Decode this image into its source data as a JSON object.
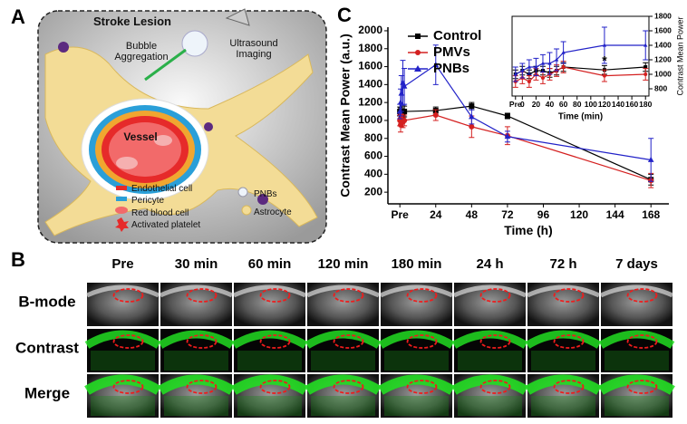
{
  "panel_labels": [
    "A",
    "B",
    "C"
  ],
  "illustration": {
    "title": "Stroke Lesion",
    "bubble": "Bubble Aggregation",
    "imaging": "Ultrasound Imaging",
    "vessel": "Vessel",
    "legend": [
      "Endothelial cell",
      "Pericyte",
      "Red blood cell",
      "Activated platelet"
    ],
    "legend_right": [
      "PNBs",
      "Astrocyte"
    ]
  },
  "image_grid": {
    "columns": [
      "Pre",
      "30 min",
      "60 min",
      "120 min",
      "180 min",
      "24 h",
      "72 h",
      "7 days"
    ],
    "rows": [
      "B-mode",
      "Contrast",
      "Merge"
    ]
  },
  "chart_data": [
    {
      "type": "line",
      "x_label": "Time (h)",
      "y_label": "Contrast Mean Power (a.u.)",
      "legend": "upper left",
      "x": [
        0,
        0.5,
        1,
        2,
        3,
        24,
        48,
        72,
        168
      ],
      "series": [
        {
          "name": "Control",
          "color": "#000000",
          "marker": "square",
          "values": [
            1100,
            1080,
            1090,
            1050,
            1100,
            1110,
            1160,
            1050,
            340
          ],
          "errors": [
            50,
            60,
            50,
            50,
            60,
            40,
            40,
            30,
            60
          ]
        },
        {
          "name": "PMVs",
          "color": "#d42020",
          "marker": "circle",
          "values": [
            1000,
            950,
            1000,
            980,
            1000,
            1060,
            930,
            830,
            330
          ],
          "errors": [
            60,
            80,
            70,
            60,
            60,
            60,
            120,
            100,
            80
          ]
        },
        {
          "name": "PNBs",
          "color": "#2222c8",
          "marker": "triangle",
          "values": [
            1100,
            1200,
            1300,
            1420,
            1380,
            1620,
            1040,
            820,
            560
          ],
          "errors": [
            80,
            150,
            200,
            250,
            200,
            220,
            80,
            60,
            240
          ]
        }
      ],
      "xlim": [
        -8,
        180
      ],
      "ylim": [
        70,
        2040
      ],
      "xticks": [
        {
          "value": 0,
          "label": "Pre"
        },
        24,
        48,
        72,
        96,
        120,
        144,
        168
      ],
      "yticks": [
        200,
        400,
        600,
        800,
        1000,
        1200,
        1400,
        1600,
        1800,
        2000
      ]
    },
    {
      "type": "line",
      "x_label": "Time (min)",
      "y_label": "Contrast Mean Power",
      "y_axis_side": "right",
      "x": [
        -10,
        0,
        10,
        20,
        30,
        40,
        50,
        60,
        120,
        180
      ],
      "series": [
        {
          "name": "Control",
          "color": "#000000",
          "marker": "square",
          "values": [
            1000,
            1050,
            1000,
            1050,
            1050,
            1020,
            1050,
            1100,
            1060,
            1100
          ],
          "errors": [
            60,
            60,
            60,
            60,
            60,
            60,
            60,
            60,
            60,
            60
          ]
        },
        {
          "name": "PMVs",
          "color": "#d42020",
          "marker": "circle",
          "values": [
            900,
            950,
            900,
            1000,
            950,
            1000,
            1050,
            1100,
            980,
            1000
          ],
          "errors": [
            80,
            80,
            80,
            80,
            80,
            80,
            80,
            80,
            80,
            80
          ]
        },
        {
          "name": "PNBs",
          "color": "#2222c8",
          "marker": "triangle",
          "values": [
            1000,
            1050,
            1100,
            1100,
            1150,
            1150,
            1200,
            1300,
            1400,
            1400
          ],
          "errors": [
            100,
            100,
            100,
            120,
            120,
            150,
            150,
            150,
            250,
            200
          ]
        }
      ],
      "annotation": {
        "text": "*",
        "x": 120,
        "y": 1180
      },
      "xlim": [
        -15,
        185
      ],
      "ylim": [
        700,
        1800
      ],
      "xticks": [
        {
          "value": -10,
          "label": "Pre"
        },
        0,
        20,
        40,
        60,
        80,
        100,
        120,
        140,
        160,
        180
      ],
      "yticks": [
        800,
        1000,
        1200,
        1400,
        1600,
        1800
      ]
    }
  ]
}
